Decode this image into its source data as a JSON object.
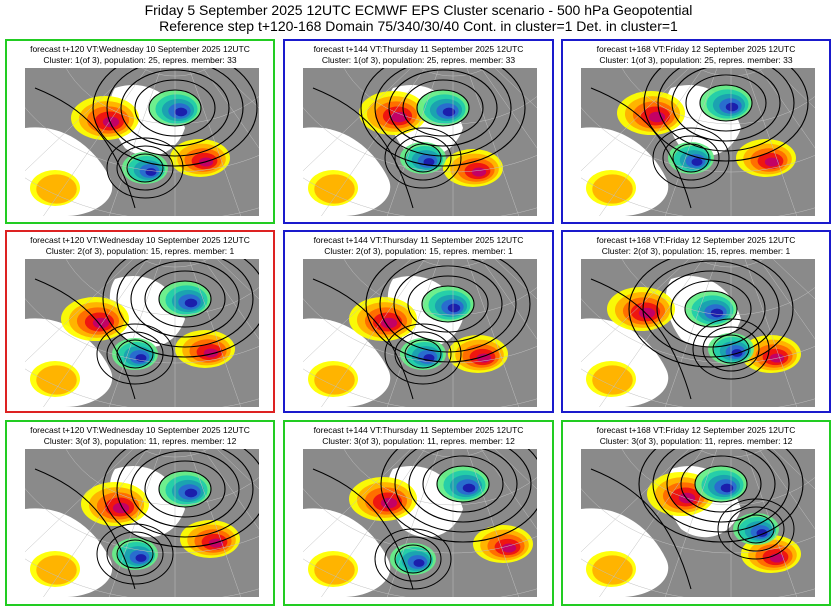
{
  "header": {
    "line1": "Friday 5 September 2025 12UTC ECMWF EPS Cluster scenario - 500 hPa Geopotential",
    "line2": "Reference step t+120-168 Domain 75/340/30/40 Cont. in cluster=1 Det. in cluster=1"
  },
  "colors": {
    "green_frame": "#22cc22",
    "blue_frame": "#1a1acc",
    "red_frame": "#dd2222",
    "land": "#8a8a8a",
    "positive_anomaly_shades": [
      "#ffff00",
      "#ffb000",
      "#ff6a00",
      "#ee1111",
      "#c0006a"
    ],
    "negative_anomaly_shades": [
      "#66ee88",
      "#22ccaa",
      "#1aa0b0",
      "#2a6ad0",
      "#1a1aaa"
    ]
  },
  "panels": [
    {
      "caption1": "forecast t+120 VT:Wednesday 10 September 2025 12UTC",
      "caption2": "Cluster: 1(of 3), population: 25, repres. member: 33",
      "frame": "green"
    },
    {
      "caption1": "forecast t+144 VT:Thursday 11 September 2025 12UTC",
      "caption2": "Cluster: 1(of 3), population: 25, repres. member: 33",
      "frame": "blue"
    },
    {
      "caption1": "forecast t+168 VT:Friday 12 September 2025 12UTC",
      "caption2": "Cluster: 1(of 3), population: 25, repres. member: 33",
      "frame": "blue"
    },
    {
      "caption1": "forecast t+120 VT:Wednesday 10 September 2025 12UTC",
      "caption2": "Cluster: 2(of 3), population: 15, repres. member: 1",
      "frame": "red"
    },
    {
      "caption1": "forecast t+144 VT:Thursday 11 September 2025 12UTC",
      "caption2": "Cluster: 2(of 3), population: 15, repres. member: 1",
      "frame": "blue"
    },
    {
      "caption1": "forecast t+168 VT:Friday 12 September 2025 12UTC",
      "caption2": "Cluster: 2(of 3), population: 15, repres. member: 1",
      "frame": "blue"
    },
    {
      "caption1": "forecast t+120 VT:Wednesday 10 September 2025 12UTC",
      "caption2": "Cluster: 3(of 3), population: 11, repres. member: 12",
      "frame": "green"
    },
    {
      "caption1": "forecast t+144 VT:Thursday 11 September 2025 12UTC",
      "caption2": "Cluster: 3(of 3), population: 11, repres. member: 12",
      "frame": "green"
    },
    {
      "caption1": "forecast t+168 VT:Friday 12 September 2025 12UTC",
      "caption2": "Cluster: 3(of 3), population: 11, repres. member: 12",
      "frame": "green"
    }
  ]
}
